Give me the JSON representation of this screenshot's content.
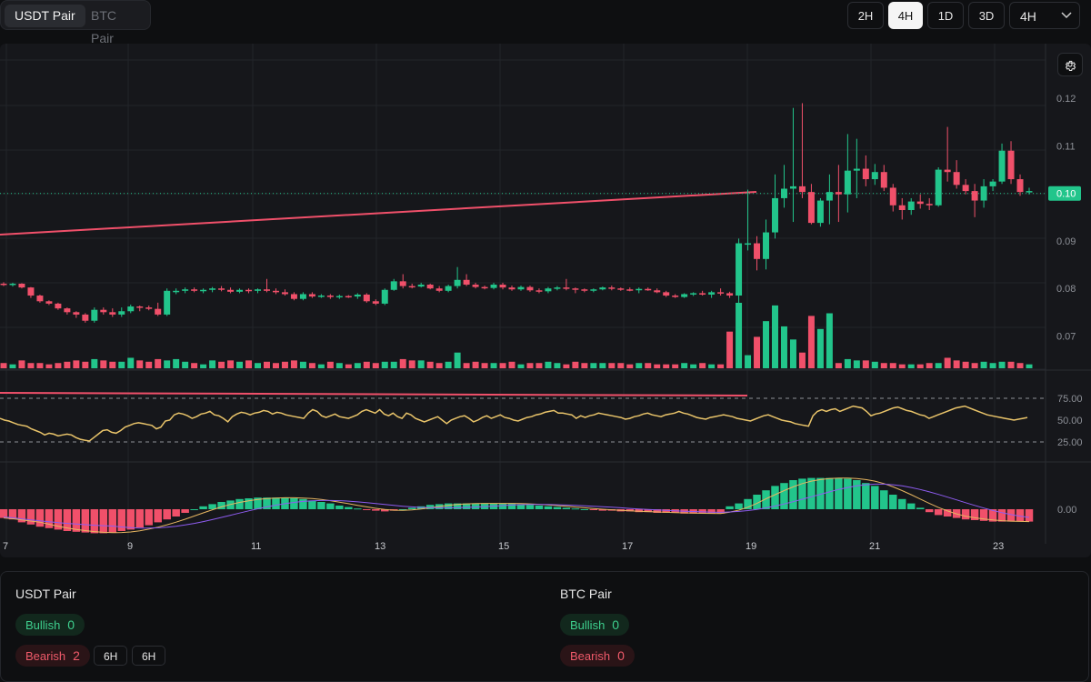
{
  "header": {
    "pair_tabs": [
      {
        "label": "USDT Pair",
        "active": true
      },
      {
        "label": "BTC Pair",
        "active": false
      }
    ],
    "timeframes": [
      {
        "label": "2H",
        "active": false
      },
      {
        "label": "4H",
        "active": true
      },
      {
        "label": "1D",
        "active": false
      },
      {
        "label": "3D",
        "active": false
      }
    ],
    "timeframe_select": "4H"
  },
  "chart_data": {
    "type": "candlestick",
    "x_tick_labels": [
      "7",
      "9",
      "11",
      "13",
      "15",
      "17",
      "19",
      "21",
      "23"
    ],
    "price_axis": {
      "ticks": [
        "0.12",
        "0.11",
        "0.09",
        "0.08",
        "0.07"
      ],
      "ylim": [
        0.063,
        0.13
      ]
    },
    "last_price": "0.10",
    "candles": [
      [
        0.081,
        0.0813,
        0.0805,
        0.0808
      ],
      [
        0.0808,
        0.0812,
        0.0804,
        0.081
      ],
      [
        0.081,
        0.0811,
        0.08,
        0.0802
      ],
      [
        0.0802,
        0.0803,
        0.078,
        0.0785
      ],
      [
        0.0785,
        0.0787,
        0.077,
        0.0773
      ],
      [
        0.0773,
        0.0775,
        0.0765,
        0.0768
      ],
      [
        0.0768,
        0.077,
        0.0755,
        0.0758
      ],
      [
        0.0758,
        0.076,
        0.0745,
        0.075
      ],
      [
        0.075,
        0.0752,
        0.0738,
        0.0745
      ],
      [
        0.0745,
        0.0748,
        0.0728,
        0.0732
      ],
      [
        0.0732,
        0.076,
        0.0728,
        0.0755
      ],
      [
        0.0755,
        0.076,
        0.0745,
        0.075
      ],
      [
        0.075,
        0.0758,
        0.074,
        0.0745
      ],
      [
        0.0745,
        0.076,
        0.074,
        0.0752
      ],
      [
        0.0752,
        0.0766,
        0.0748,
        0.0762
      ],
      [
        0.0762,
        0.0764,
        0.0752,
        0.076
      ],
      [
        0.076,
        0.0764,
        0.0754,
        0.0757
      ],
      [
        0.0757,
        0.077,
        0.0742,
        0.0745
      ],
      [
        0.0745,
        0.08,
        0.0742,
        0.0795
      ],
      [
        0.0795,
        0.08,
        0.0788,
        0.0795
      ],
      [
        0.0795,
        0.0802,
        0.079,
        0.0798
      ],
      [
        0.0798,
        0.0802,
        0.0792,
        0.0795
      ],
      [
        0.0795,
        0.08,
        0.079,
        0.0797
      ],
      [
        0.0797,
        0.0803,
        0.0792,
        0.08
      ],
      [
        0.08,
        0.0805,
        0.0794,
        0.0797
      ],
      [
        0.0797,
        0.0802,
        0.079,
        0.0793
      ],
      [
        0.0793,
        0.08,
        0.079,
        0.0797
      ],
      [
        0.0797,
        0.08,
        0.079,
        0.0795
      ],
      [
        0.0795,
        0.08,
        0.079,
        0.0798
      ],
      [
        0.0798,
        0.082,
        0.0792,
        0.0795
      ],
      [
        0.0795,
        0.08,
        0.0788,
        0.0792
      ],
      [
        0.0792,
        0.0798,
        0.0785,
        0.0788
      ],
      [
        0.0788,
        0.0792,
        0.0775,
        0.0778
      ],
      [
        0.0778,
        0.0792,
        0.0775,
        0.0788
      ],
      [
        0.0788,
        0.0792,
        0.078,
        0.0783
      ],
      [
        0.0783,
        0.0788,
        0.078,
        0.0785
      ],
      [
        0.0785,
        0.0788,
        0.0778,
        0.0782
      ],
      [
        0.0782,
        0.0787,
        0.0778,
        0.0784
      ],
      [
        0.0784,
        0.0786,
        0.078,
        0.0783
      ],
      [
        0.0783,
        0.079,
        0.0778,
        0.0787
      ],
      [
        0.0787,
        0.079,
        0.077,
        0.0773
      ],
      [
        0.0773,
        0.0777,
        0.0765,
        0.0768
      ],
      [
        0.0768,
        0.08,
        0.0765,
        0.0797
      ],
      [
        0.0797,
        0.082,
        0.0795,
        0.0815
      ],
      [
        0.0815,
        0.083,
        0.08,
        0.0805
      ],
      [
        0.0805,
        0.081,
        0.08,
        0.0804
      ],
      [
        0.0804,
        0.0812,
        0.0802,
        0.0808
      ],
      [
        0.0808,
        0.081,
        0.0798,
        0.08
      ],
      [
        0.08,
        0.0805,
        0.0792,
        0.0795
      ],
      [
        0.0795,
        0.0808,
        0.0792,
        0.0805
      ],
      [
        0.0805,
        0.0845,
        0.08,
        0.0818
      ],
      [
        0.0818,
        0.083,
        0.0805,
        0.0808
      ],
      [
        0.0808,
        0.0812,
        0.08,
        0.0803
      ],
      [
        0.0803,
        0.0806,
        0.0798,
        0.0801
      ],
      [
        0.0801,
        0.0812,
        0.0798,
        0.0808
      ],
      [
        0.0808,
        0.0812,
        0.0798,
        0.0802
      ],
      [
        0.0802,
        0.0806,
        0.0795,
        0.0798
      ],
      [
        0.0798,
        0.0806,
        0.0795,
        0.0803
      ],
      [
        0.0803,
        0.0806,
        0.0793,
        0.0796
      ],
      [
        0.0796,
        0.08,
        0.079,
        0.0794
      ],
      [
        0.0794,
        0.0803,
        0.079,
        0.08
      ],
      [
        0.08,
        0.0805,
        0.0796,
        0.0802
      ],
      [
        0.0802,
        0.082,
        0.0796,
        0.08
      ],
      [
        0.08,
        0.0802,
        0.079,
        0.0798
      ],
      [
        0.0798,
        0.08,
        0.0792,
        0.0797
      ],
      [
        0.0797,
        0.08,
        0.0792,
        0.0798
      ],
      [
        0.0798,
        0.0804,
        0.0796,
        0.0802
      ],
      [
        0.0802,
        0.0806,
        0.0796,
        0.08
      ],
      [
        0.08,
        0.0802,
        0.0795,
        0.0798
      ],
      [
        0.0798,
        0.0802,
        0.0794,
        0.0797
      ],
      [
        0.0797,
        0.0802,
        0.079,
        0.0799
      ],
      [
        0.0799,
        0.0802,
        0.0795,
        0.0796
      ],
      [
        0.0796,
        0.08,
        0.079,
        0.0792
      ],
      [
        0.0792,
        0.0795,
        0.0782,
        0.0785
      ],
      [
        0.0785,
        0.0788,
        0.078,
        0.0782
      ],
      [
        0.0782,
        0.079,
        0.078,
        0.0788
      ],
      [
        0.0788,
        0.0792,
        0.0784,
        0.079
      ],
      [
        0.079,
        0.0795,
        0.0785,
        0.0787
      ],
      [
        0.0787,
        0.0795,
        0.078,
        0.0792
      ],
      [
        0.0792,
        0.08,
        0.0785,
        0.079
      ],
      [
        0.079,
        0.0793,
        0.078,
        0.0785
      ],
      [
        0.0785,
        0.0905,
        0.0665,
        0.0895
      ],
      [
        0.0895,
        0.1008,
        0.088,
        0.0895
      ],
      [
        0.0895,
        0.091,
        0.0838,
        0.0862
      ],
      [
        0.0862,
        0.0945,
        0.084,
        0.0918
      ],
      [
        0.0918,
        0.104,
        0.0905,
        0.099
      ],
      [
        0.099,
        0.106,
        0.097,
        0.101
      ],
      [
        0.101,
        0.118,
        0.094,
        0.1015
      ],
      [
        0.1015,
        0.119,
        0.099,
        0.1003
      ],
      [
        0.1003,
        0.102,
        0.0935,
        0.0938
      ],
      [
        0.0938,
        0.099,
        0.093,
        0.0985
      ],
      [
        0.0985,
        0.104,
        0.0935,
        0.1003
      ],
      [
        0.1003,
        0.106,
        0.094,
        0.0998
      ],
      [
        0.0998,
        0.1125,
        0.096,
        0.1048
      ],
      [
        0.1048,
        0.1115,
        0.099,
        0.1052
      ],
      [
        0.1052,
        0.108,
        0.1015,
        0.103
      ],
      [
        0.103,
        0.1062,
        0.1018,
        0.1045
      ],
      [
        0.1045,
        0.106,
        0.1005,
        0.1012
      ],
      [
        0.1012,
        0.102,
        0.0962,
        0.0975
      ],
      [
        0.0975,
        0.099,
        0.0945,
        0.0965
      ],
      [
        0.0965,
        0.099,
        0.0955,
        0.0983
      ],
      [
        0.0983,
        0.0998,
        0.0968,
        0.0978
      ],
      [
        0.0978,
        0.099,
        0.0965,
        0.0975
      ],
      [
        0.0975,
        0.1055,
        0.0972,
        0.105
      ],
      [
        0.105,
        0.114,
        0.1025,
        0.1045
      ],
      [
        0.1045,
        0.107,
        0.101,
        0.1018
      ],
      [
        0.1018,
        0.103,
        0.0998,
        0.1005
      ],
      [
        0.1005,
        0.102,
        0.095,
        0.0985
      ],
      [
        0.0985,
        0.103,
        0.097,
        0.1015
      ],
      [
        0.1015,
        0.103,
        0.1005,
        0.1025
      ],
      [
        0.1025,
        0.1105,
        0.102,
        0.109
      ],
      [
        0.109,
        0.111,
        0.102,
        0.103
      ],
      [
        0.103,
        0.104,
        0.0995,
        0.1003
      ],
      [
        0.1003,
        0.1012,
        0.0998,
        0.1005
      ]
    ],
    "volume": [
      4,
      3,
      6,
      4,
      4,
      3,
      4,
      5,
      6,
      5,
      7,
      6,
      5,
      5,
      8,
      6,
      5,
      7,
      6,
      7,
      5,
      4,
      3,
      6,
      5,
      6,
      5,
      6,
      4,
      5,
      4,
      5,
      6,
      5,
      4,
      3,
      5,
      4,
      3,
      4,
      5,
      4,
      5,
      5,
      7,
      6,
      6,
      5,
      4,
      5,
      12,
      4,
      5,
      4,
      4,
      4,
      5,
      3,
      4,
      4,
      5,
      4,
      3,
      5,
      4,
      4,
      4,
      4,
      4,
      3,
      4,
      4,
      3,
      3,
      3,
      4,
      3,
      4,
      3,
      3,
      28,
      50,
      10,
      24,
      36,
      48,
      32,
      22,
      12,
      40,
      30,
      42,
      4,
      7,
      6,
      6,
      5,
      4,
      4,
      3,
      3,
      3,
      4,
      4,
      8,
      6,
      5,
      4,
      5,
      4,
      5,
      5,
      4,
      3
    ],
    "rsi": [
      52,
      50,
      49,
      47,
      45,
      44,
      43,
      40,
      38,
      36,
      33,
      35,
      34,
      32,
      33,
      34,
      33,
      30,
      28,
      27,
      26,
      30,
      34,
      38,
      39,
      36,
      35,
      38,
      42,
      44,
      46,
      47,
      46,
      45,
      44,
      40,
      42,
      49,
      50,
      56,
      58,
      57,
      55,
      52,
      54,
      57,
      58,
      60,
      56,
      55,
      52,
      48,
      54,
      57,
      59,
      58,
      56,
      58,
      59,
      61,
      60,
      57,
      59,
      58,
      56,
      55,
      54,
      53,
      52,
      58,
      62,
      60,
      55,
      53,
      55,
      57,
      54,
      53,
      52,
      54,
      56,
      60,
      62,
      60,
      58,
      62,
      57,
      55,
      58,
      54,
      52,
      58,
      56,
      52,
      50,
      48,
      50,
      52,
      54,
      50,
      46,
      50,
      52,
      54,
      55,
      52,
      48,
      50,
      53,
      55,
      52,
      54,
      56,
      53,
      52,
      50,
      49,
      51,
      53,
      54,
      56,
      57,
      59,
      60,
      61,
      58,
      58,
      57,
      56,
      52,
      55,
      53,
      55,
      56,
      58,
      57,
      56,
      55,
      54,
      53,
      51,
      52,
      54,
      55,
      57,
      58,
      56,
      55,
      54,
      56,
      57,
      58,
      60,
      58,
      57,
      55,
      53,
      52,
      51,
      53,
      54,
      55,
      56,
      55,
      54,
      52,
      51,
      50,
      49,
      51,
      53,
      55,
      56,
      54,
      52,
      50,
      49,
      48,
      46,
      45,
      44,
      43,
      55,
      60,
      62,
      60,
      62,
      63,
      60,
      62,
      64,
      66,
      65,
      64,
      60,
      55,
      57,
      58,
      60,
      62,
      64,
      65,
      63,
      61,
      60,
      58,
      56,
      55,
      52,
      54,
      56,
      58,
      60,
      62,
      64,
      65,
      66,
      64,
      62,
      60,
      58,
      56,
      55,
      54,
      53,
      52,
      51,
      50,
      51,
      52,
      53
    ],
    "macd_hist": [
      -1.2,
      -1.4,
      -1.8,
      -2.1,
      -2.4,
      -2.6,
      -2.8,
      -3.0,
      -3.1,
      -3.2,
      -3.3,
      -3.3,
      -3.2,
      -3.0,
      -2.8,
      -2.5,
      -2.2,
      -1.8,
      -1.4,
      -1.0,
      -0.5,
      0.0,
      0.4,
      0.7,
      1.0,
      1.2,
      1.4,
      1.5,
      1.6,
      1.6,
      1.6,
      1.6,
      1.5,
      1.4,
      1.2,
      1.0,
      0.8,
      0.5,
      0.3,
      0.1,
      -0.1,
      -0.2,
      -0.3,
      -0.2,
      0.0,
      0.2,
      0.4,
      0.6,
      0.7,
      0.8,
      0.8,
      0.8,
      0.8,
      0.8,
      0.8,
      0.8,
      0.8,
      0.7,
      0.6,
      0.5,
      0.4,
      0.3,
      0.2,
      0.1,
      0.0,
      -0.1,
      -0.2,
      -0.2,
      -0.3,
      -0.3,
      -0.4,
      -0.4,
      -0.5,
      -0.5,
      -0.5,
      -0.6,
      -0.6,
      -0.6,
      -0.6,
      -0.6,
      0.4,
      0.8,
      1.4,
      2.0,
      2.6,
      3.2,
      3.6,
      4.0,
      4.2,
      4.3,
      4.3,
      4.3,
      4.3,
      4.2,
      4.0,
      3.6,
      3.2,
      2.6,
      2.0,
      1.4,
      0.8,
      0.2,
      -0.4,
      -0.8,
      -1.0,
      -1.2,
      -1.4,
      -1.5,
      -1.6,
      -1.7,
      -1.7,
      -1.7,
      -1.7,
      -1.7
    ],
    "rsi_axis": [
      "75.00",
      "50.00",
      "25.00"
    ],
    "macd_axis": [
      "0.00"
    ]
  },
  "summary": {
    "usdt": {
      "title": "USDT Pair",
      "bullish_label": "Bullish",
      "bullish_count": "0",
      "bearish_label": "Bearish",
      "bearish_count": "2",
      "tf_tags": [
        "6H",
        "6H"
      ]
    },
    "btc": {
      "title": "BTC Pair",
      "bullish_label": "Bullish",
      "bullish_count": "0",
      "bearish_label": "Bearish",
      "bearish_count": "0"
    }
  },
  "colors": {
    "up": "#22c58b",
    "down": "#f0506a",
    "rsi": "#e9c46a",
    "macd_signal": "#e7b661",
    "macd_line": "#8e5cf0",
    "trend": "#f0506a"
  },
  "icons": {
    "settings": "gear-icon",
    "dropdown": "chevron-down-icon"
  }
}
